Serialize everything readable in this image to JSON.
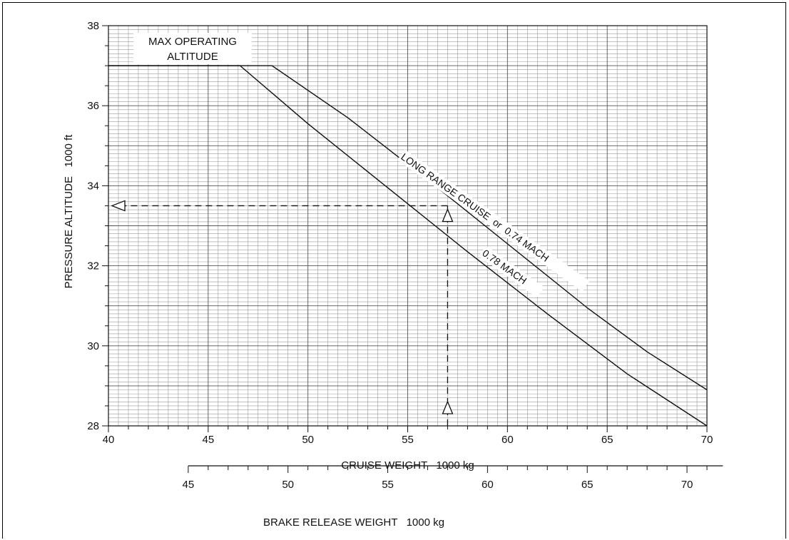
{
  "chart_data": {
    "type": "line",
    "xlabel": "CRUISE WEIGHT   1000 kg",
    "ylabel": "PRESSURE ALTITUDE   1000 ft",
    "xlim": [
      40,
      70
    ],
    "ylim": [
      28,
      38
    ],
    "x_ticks": [
      40,
      45,
      50,
      55,
      60,
      65,
      70
    ],
    "y_ticks": [
      28,
      30,
      32,
      34,
      36,
      38
    ],
    "grid": true,
    "secondary_axis": {
      "label": "BRAKE RELEASE WEIGHT   1000 kg",
      "ticks": [
        45,
        50,
        55,
        60,
        65,
        70
      ],
      "cruise_at_tick_45": 44.0,
      "cruise_per_unit": 1.0
    },
    "annotations": {
      "max_altitude_line1": "MAX OPERATING",
      "max_altitude_line2": "ALTITUDE",
      "lrc_label": "LONG RANGE CRUISE  or  0.74 MACH",
      "mach78_label": "0.78 MACH"
    },
    "max_operating_altitude": 37.0,
    "series": [
      {
        "name": "LONG RANGE CRUISE or 0.74 MACH",
        "points": [
          [
            40,
            37.0
          ],
          [
            48.2,
            37.0
          ],
          [
            52,
            35.7
          ],
          [
            56,
            34.15
          ],
          [
            60,
            32.55
          ],
          [
            64,
            30.95
          ],
          [
            67,
            29.85
          ],
          [
            70,
            28.9
          ]
        ]
      },
      {
        "name": "0.78 MACH",
        "points": [
          [
            40,
            37.0
          ],
          [
            46.6,
            37.0
          ],
          [
            50,
            35.55
          ],
          [
            54,
            33.95
          ],
          [
            58,
            32.35
          ],
          [
            62,
            30.8
          ],
          [
            66,
            29.3
          ],
          [
            70,
            28.0
          ]
        ]
      }
    ],
    "example": {
      "cruise_weight": 57.0,
      "pressure_altitude": 33.5
    }
  }
}
